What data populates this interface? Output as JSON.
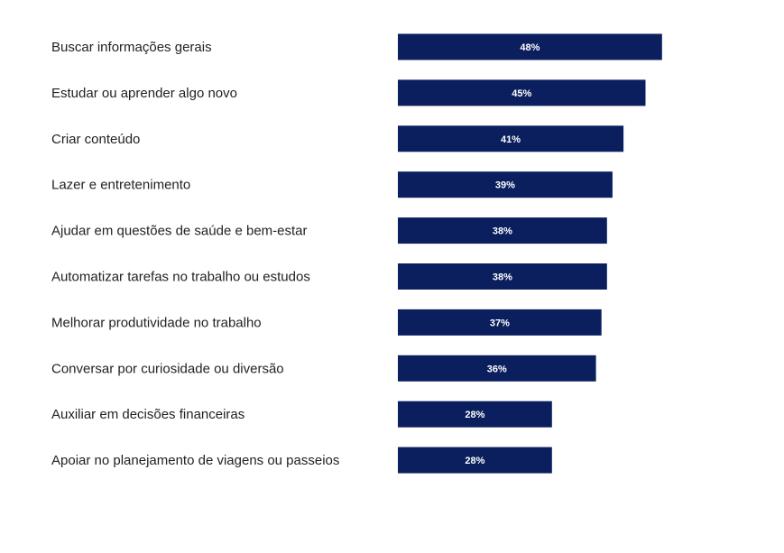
{
  "chart_data": {
    "type": "bar",
    "orientation": "horizontal",
    "categories": [
      "Buscar informações gerais",
      "Estudar ou aprender algo novo",
      "Criar conteúdo",
      "Lazer e entretenimento",
      "Ajudar em questões de saúde e bem-estar",
      "Automatizar tarefas no trabalho ou estudos",
      "Melhorar produtividade no trabalho",
      "Conversar por curiosidade ou diversão",
      "Auxiliar em decisões financeiras",
      "Apoiar no planejamento de viagens ou passeios"
    ],
    "values": [
      48,
      45,
      41,
      39,
      38,
      38,
      37,
      36,
      28,
      28
    ],
    "value_labels": [
      "48%",
      "45%",
      "41%",
      "39%",
      "38%",
      "38%",
      "37%",
      "36%",
      "28%",
      "28%"
    ],
    "unit": "%",
    "bar_color": "#0b1f5e",
    "value_label_color": "#ffffff",
    "label_color": "#222222",
    "xlim": [
      0,
      100
    ],
    "grid": false,
    "legend": "none"
  }
}
